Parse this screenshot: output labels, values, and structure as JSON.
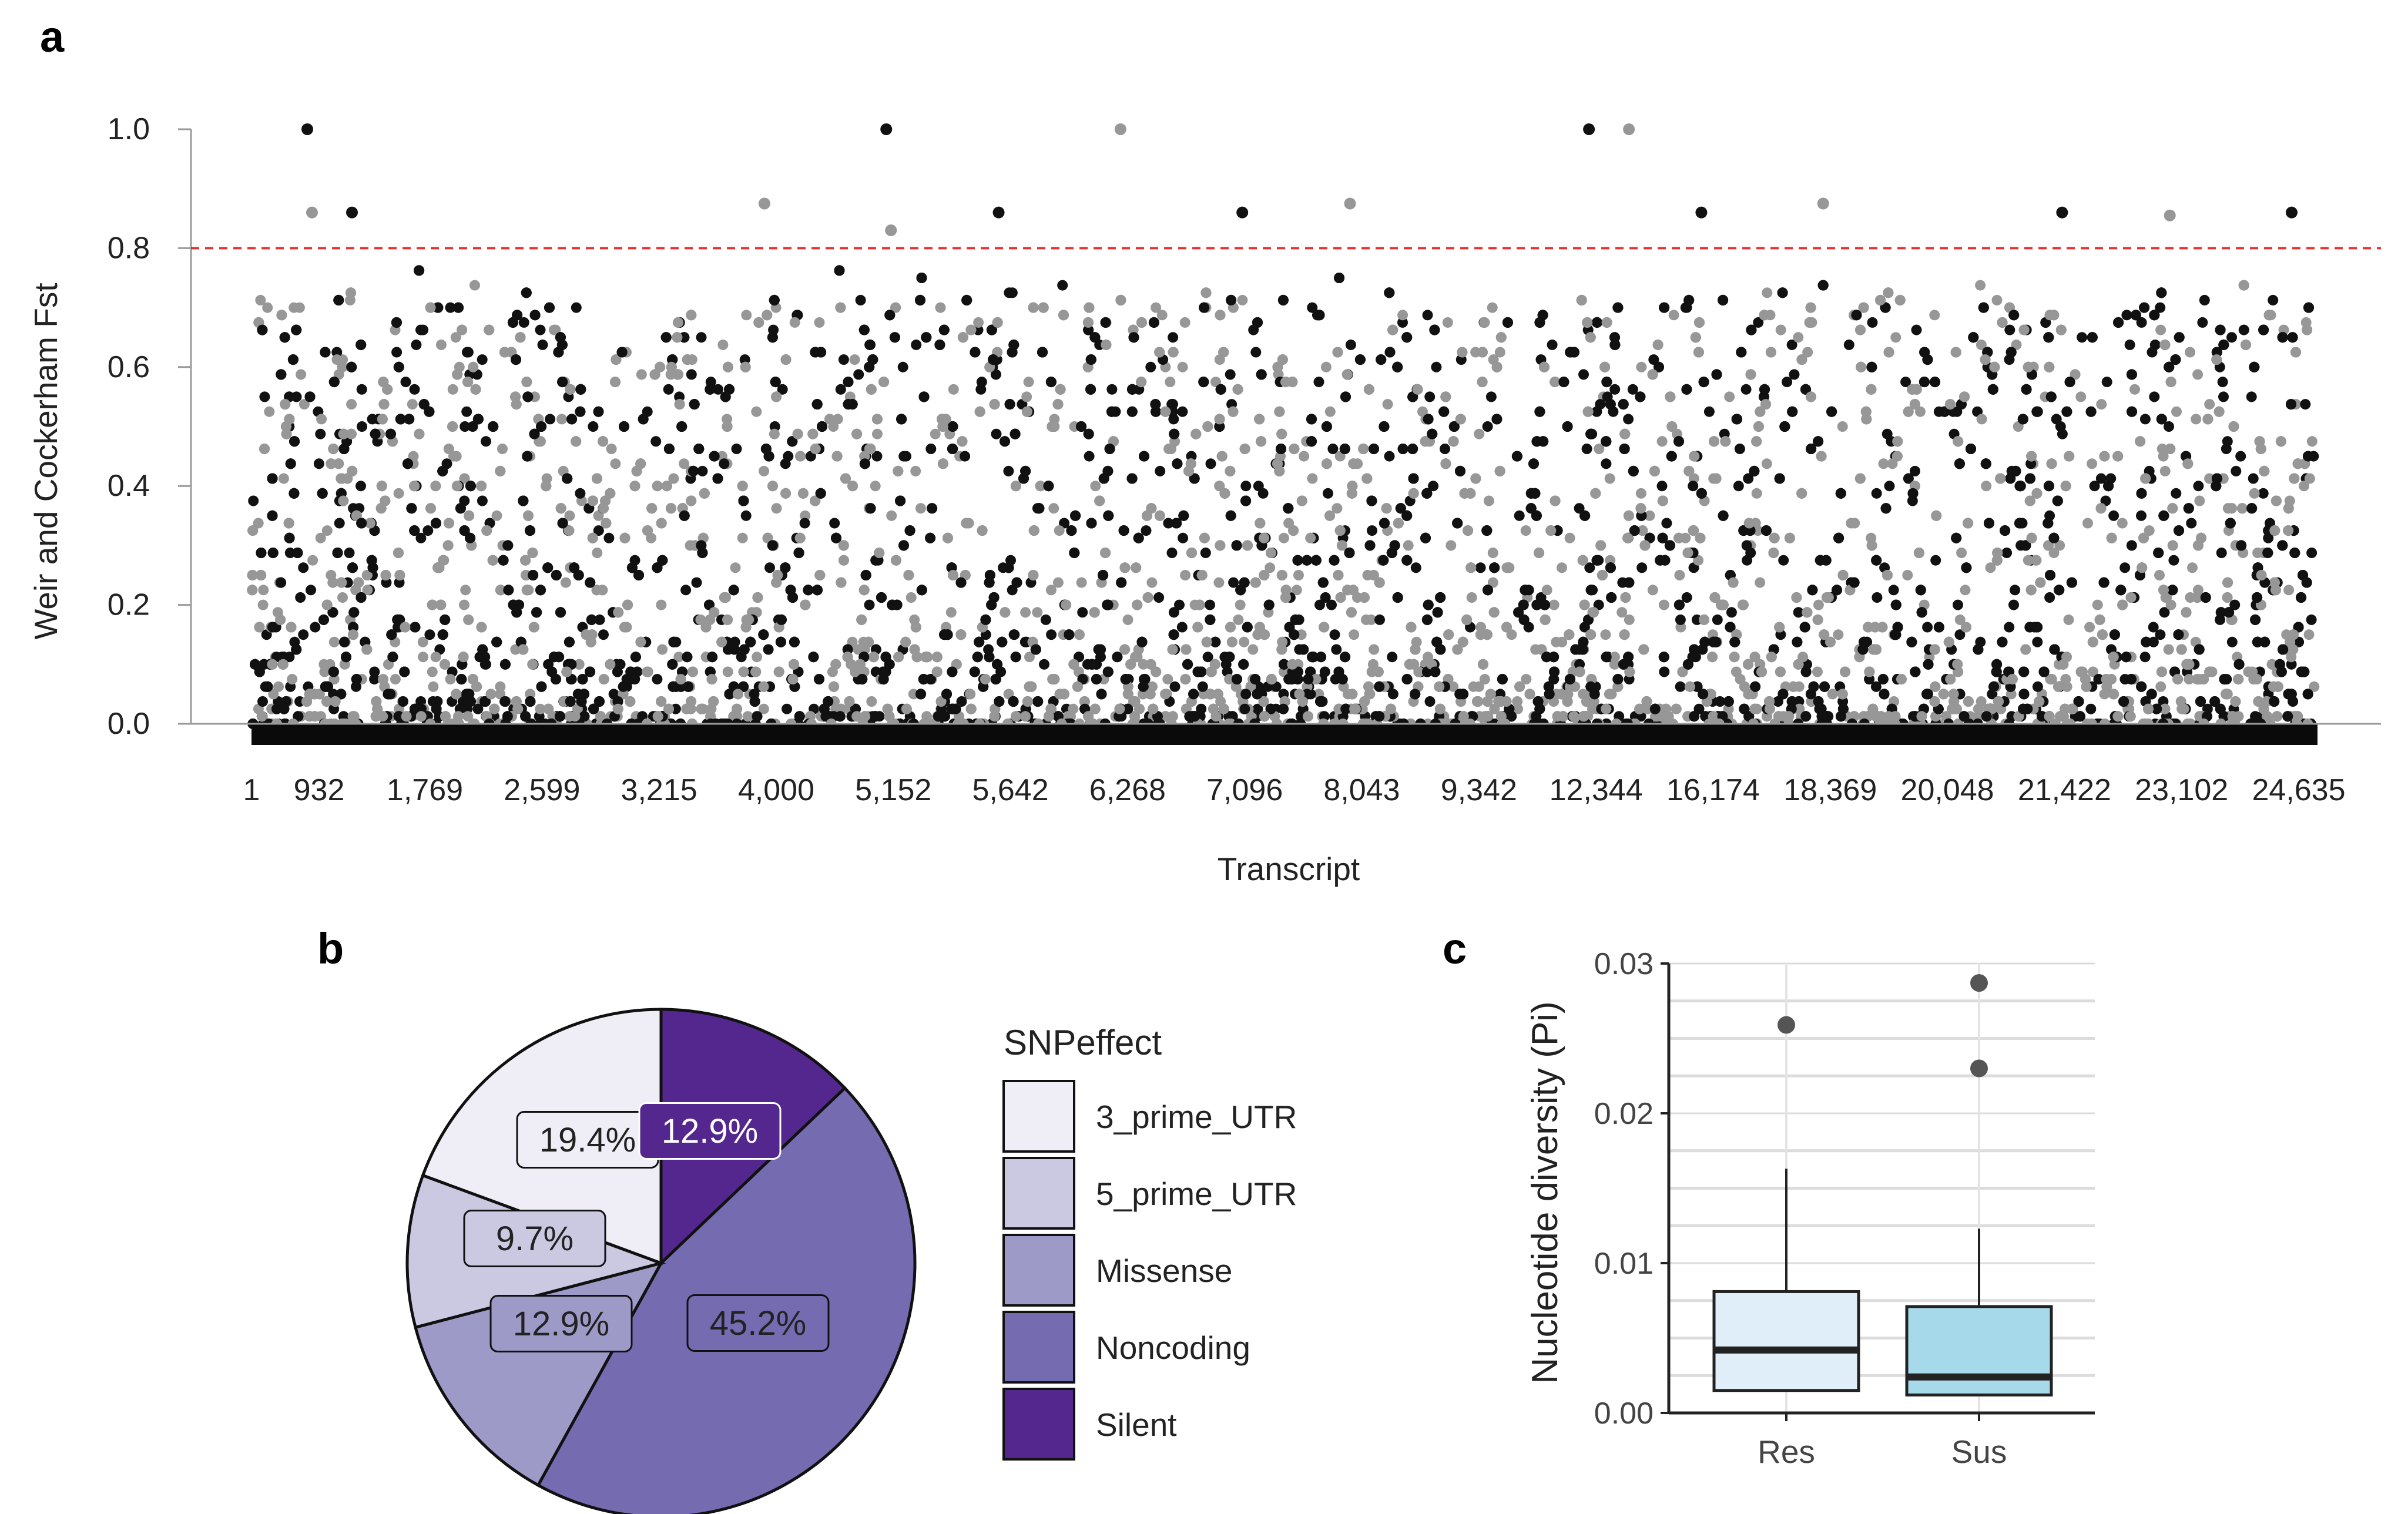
{
  "panels": {
    "a": {
      "label": "a"
    },
    "b": {
      "label": "b"
    },
    "c": {
      "label": "c"
    }
  },
  "chart_data": [
    {
      "panel": "a",
      "type": "scatter",
      "xlabel": "Transcript",
      "ylabel": "Weir and Cockerham Fst",
      "ylim": [
        0,
        1
      ],
      "yticks": [
        "0.0",
        "0.2",
        "0.4",
        "0.6",
        "0.8",
        "1.0"
      ],
      "xticks": [
        "1",
        "932",
        "1,769",
        "2,599",
        "3,215",
        "4,000",
        "5,152",
        "5,642",
        "6,268",
        "7,096",
        "8,043",
        "9,342",
        "12,344",
        "16,174",
        "18,369",
        "20,048",
        "21,422",
        "23,102",
        "24,635"
      ],
      "threshold": 0.8,
      "colors": {
        "dark": "#111111",
        "light": "#979797",
        "threshold": "#e8312f"
      },
      "notable_points": [
        {
          "x": "932",
          "y": 1.0
        },
        {
          "x": "932",
          "y": 0.86
        },
        {
          "x": "932",
          "y": 0.86
        },
        {
          "x": "4,000",
          "y": 0.875
        },
        {
          "x": "5,152",
          "y": 1.0
        },
        {
          "x": "5,152",
          "y": 0.83
        },
        {
          "x": "5,642",
          "y": 0.86
        },
        {
          "x": "6,268",
          "y": 1.0
        },
        {
          "x": "7,096",
          "y": 0.86
        },
        {
          "x": "8,043",
          "y": 0.875
        },
        {
          "x": "12,344",
          "y": 1.0
        },
        {
          "x": "12,344",
          "y": 1.0
        },
        {
          "x": "16,174",
          "y": 0.86
        },
        {
          "x": "18,369",
          "y": 0.875
        },
        {
          "x": "21,422",
          "y": 0.86
        },
        {
          "x": "23,102",
          "y": 0.855
        },
        {
          "x": "24,635",
          "y": 0.86
        }
      ],
      "grid": false
    },
    {
      "panel": "b",
      "type": "pie",
      "legend_title": "SNPeffect",
      "legend_position": "right",
      "categories": [
        "3_prime_UTR",
        "5_prime_UTR",
        "Missense",
        "Noncoding",
        "Silent"
      ],
      "values": [
        19.4,
        9.7,
        12.9,
        45.2,
        12.9
      ],
      "labels": [
        "19.4%",
        "9.7%",
        "12.9%",
        "45.2%",
        "12.9%"
      ],
      "colors": [
        "#efedf5",
        "#cbc8e2",
        "#9e9ac8",
        "#756bb1",
        "#54278f"
      ]
    },
    {
      "panel": "c",
      "type": "box",
      "ylabel": "Nucleotide diversity (Pi)",
      "ylim": [
        0,
        0.03
      ],
      "yticks": [
        "0.00",
        "0.01",
        "0.02",
        "0.03"
      ],
      "categories": [
        "Res",
        "Sus"
      ],
      "series": [
        {
          "category": "Res",
          "whisker_low": 0.0015,
          "q1": 0.0015,
          "median": 0.0042,
          "q3": 0.0081,
          "whisker_high": 0.0163,
          "outliers": [
            0.0259
          ],
          "color": "#dfeef9"
        },
        {
          "category": "Sus",
          "whisker_low": 0.0012,
          "q1": 0.0012,
          "median": 0.0024,
          "q3": 0.0071,
          "whisker_high": 0.0123,
          "outliers": [
            0.0287,
            0.023
          ],
          "color": "#a6d9ea"
        }
      ],
      "grid": true
    }
  ]
}
